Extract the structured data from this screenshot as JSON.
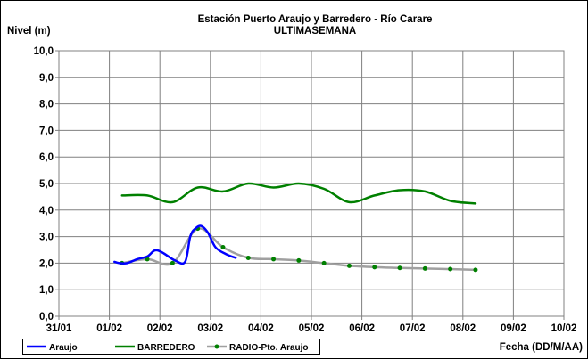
{
  "chart_data": {
    "type": "line",
    "title": "Estación Puerto Araujo y Barredero - Río Carare",
    "subtitle": "ULTIMASEMANA",
    "ylabel": "Nivel (m)",
    "xlabel": "Fecha (DD/M/AA)",
    "xlim": [
      0,
      10
    ],
    "ylim": [
      0,
      10
    ],
    "x_ticks": [
      0,
      1,
      2,
      3,
      4,
      5,
      6,
      7,
      8,
      9,
      10
    ],
    "x_tick_labels": [
      "31/01",
      "01/02",
      "02/02",
      "03/02",
      "04/02",
      "05/02",
      "06/02",
      "07/02",
      "08/02",
      "09/02",
      "10/02"
    ],
    "y_ticks": [
      0,
      1,
      2,
      3,
      4,
      5,
      6,
      7,
      8,
      9,
      10
    ],
    "y_tick_labels": [
      "0,0",
      "1,0",
      "2,0",
      "3,0",
      "4,0",
      "5,0",
      "6,0",
      "7,0",
      "8,0",
      "9,0",
      "10,0"
    ],
    "grid": true,
    "legend_position": "bottom-left",
    "series": [
      {
        "name": "Araujo",
        "color": "#0000ff",
        "marker": false,
        "x": [
          1.1,
          1.2,
          1.35,
          1.55,
          1.75,
          1.9,
          2.05,
          2.3,
          2.5,
          2.6,
          2.7,
          2.82,
          2.95,
          3.1,
          3.3,
          3.5
        ],
        "y": [
          2.05,
          2.0,
          2.0,
          2.15,
          2.25,
          2.48,
          2.4,
          2.1,
          2.05,
          3.0,
          3.3,
          3.4,
          3.15,
          2.6,
          2.35,
          2.2
        ]
      },
      {
        "name": "BARREDERO",
        "color": "#008000",
        "marker": false,
        "x": [
          1.25,
          1.75,
          2.25,
          2.75,
          3.25,
          3.75,
          4.25,
          4.75,
          5.25,
          5.75,
          6.25,
          6.75,
          7.25,
          7.75,
          8.25
        ],
        "y": [
          4.55,
          4.55,
          4.3,
          4.85,
          4.7,
          5.0,
          4.85,
          5.0,
          4.8,
          4.3,
          4.55,
          4.75,
          4.7,
          4.35,
          4.25
        ]
      },
      {
        "name": "RADIO-Pto. Araujo",
        "color": "#a0a0a0",
        "marker": true,
        "marker_color": "#008000",
        "x": [
          1.25,
          1.75,
          2.25,
          2.75,
          3.25,
          3.75,
          4.25,
          4.75,
          5.25,
          5.75,
          6.25,
          6.75,
          7.25,
          7.75,
          8.25
        ],
        "y": [
          2.0,
          2.15,
          2.0,
          3.3,
          2.6,
          2.2,
          2.15,
          2.1,
          2.0,
          1.9,
          1.85,
          1.82,
          1.8,
          1.78,
          1.75
        ]
      }
    ]
  }
}
